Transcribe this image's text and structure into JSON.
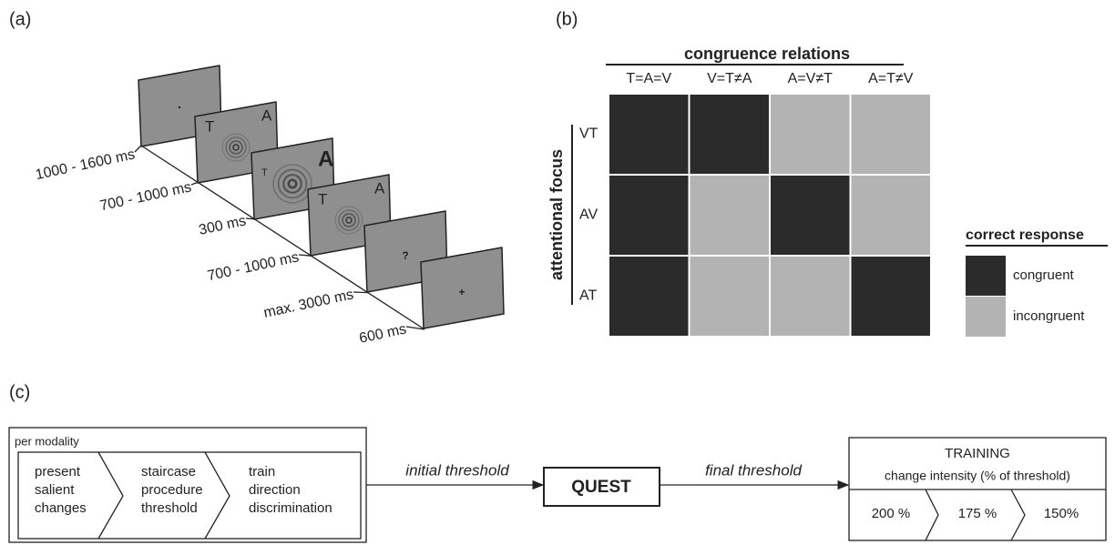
{
  "panel_a": {
    "label": "(a)",
    "screens": [
      {},
      {
        "left": "T",
        "right": "A"
      },
      {
        "left": "T",
        "right": "A"
      },
      {
        "left": "T",
        "right": "A"
      },
      {
        "center": "?"
      },
      {
        "center": "+"
      }
    ],
    "durations": [
      "1000 - 1600 ms",
      "700 - 1000 ms",
      "300 ms",
      "700 - 1000 ms",
      "max. 3000 ms",
      "600 ms"
    ]
  },
  "panel_b": {
    "label": "(b)",
    "column_title": "congruence relations",
    "columns": [
      "T=A=V",
      "V=T≠A",
      "A=V≠T",
      "A=T≠V"
    ],
    "row_title": "attentional focus",
    "rows": [
      {
        "label": "VT",
        "cells": [
          "#2b2b2b",
          "#2b2b2b",
          "#b3b3b3",
          "#b3b3b3"
        ]
      },
      {
        "label": "AV",
        "cells": [
          "#2b2b2b",
          "#b3b3b3",
          "#2b2b2b",
          "#b3b3b3"
        ]
      },
      {
        "label": "AT",
        "cells": [
          "#2b2b2b",
          "#b3b3b3",
          "#b3b3b3",
          "#2b2b2b"
        ]
      }
    ],
    "legend": {
      "title": "correct response",
      "items": [
        {
          "label": "congruent",
          "color": "#2b2b2b"
        },
        {
          "label": "incongruent",
          "color": "#b3b3b3"
        }
      ]
    }
  },
  "panel_c": {
    "label": "(c)",
    "group_title": "per modality",
    "steps": [
      [
        "present",
        "salient",
        "changes"
      ],
      [
        "staircase",
        "procedure",
        "threshold"
      ],
      [
        "train",
        "direction",
        "discrimination"
      ]
    ],
    "arrow_1": "initial threshold",
    "quest": "QUEST",
    "arrow_2": "final threshold",
    "training": {
      "title": "TRAINING",
      "subtitle": "change intensity (% of threshold)",
      "steps": [
        "200 %",
        "175 %",
        "150%"
      ]
    }
  }
}
